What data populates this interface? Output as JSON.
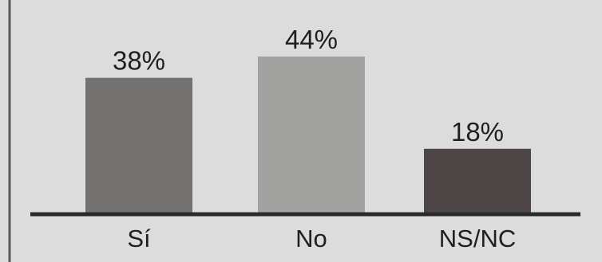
{
  "chart_data": {
    "type": "bar",
    "categories": [
      "Sí",
      "No",
      "NS/NC"
    ],
    "values": [
      38,
      44,
      18
    ],
    "value_labels": [
      "38%",
      "44%",
      "18%"
    ],
    "ylim": [
      0,
      50
    ],
    "grid": false,
    "legend": "none"
  },
  "colors": {
    "background": "#dcdcdc",
    "bars": [
      "#747171",
      "#a2a3a1",
      "#4d4546"
    ],
    "axis": "#2a2a2a",
    "text": "#1f1f1f",
    "frame": "#5a5a5a"
  }
}
